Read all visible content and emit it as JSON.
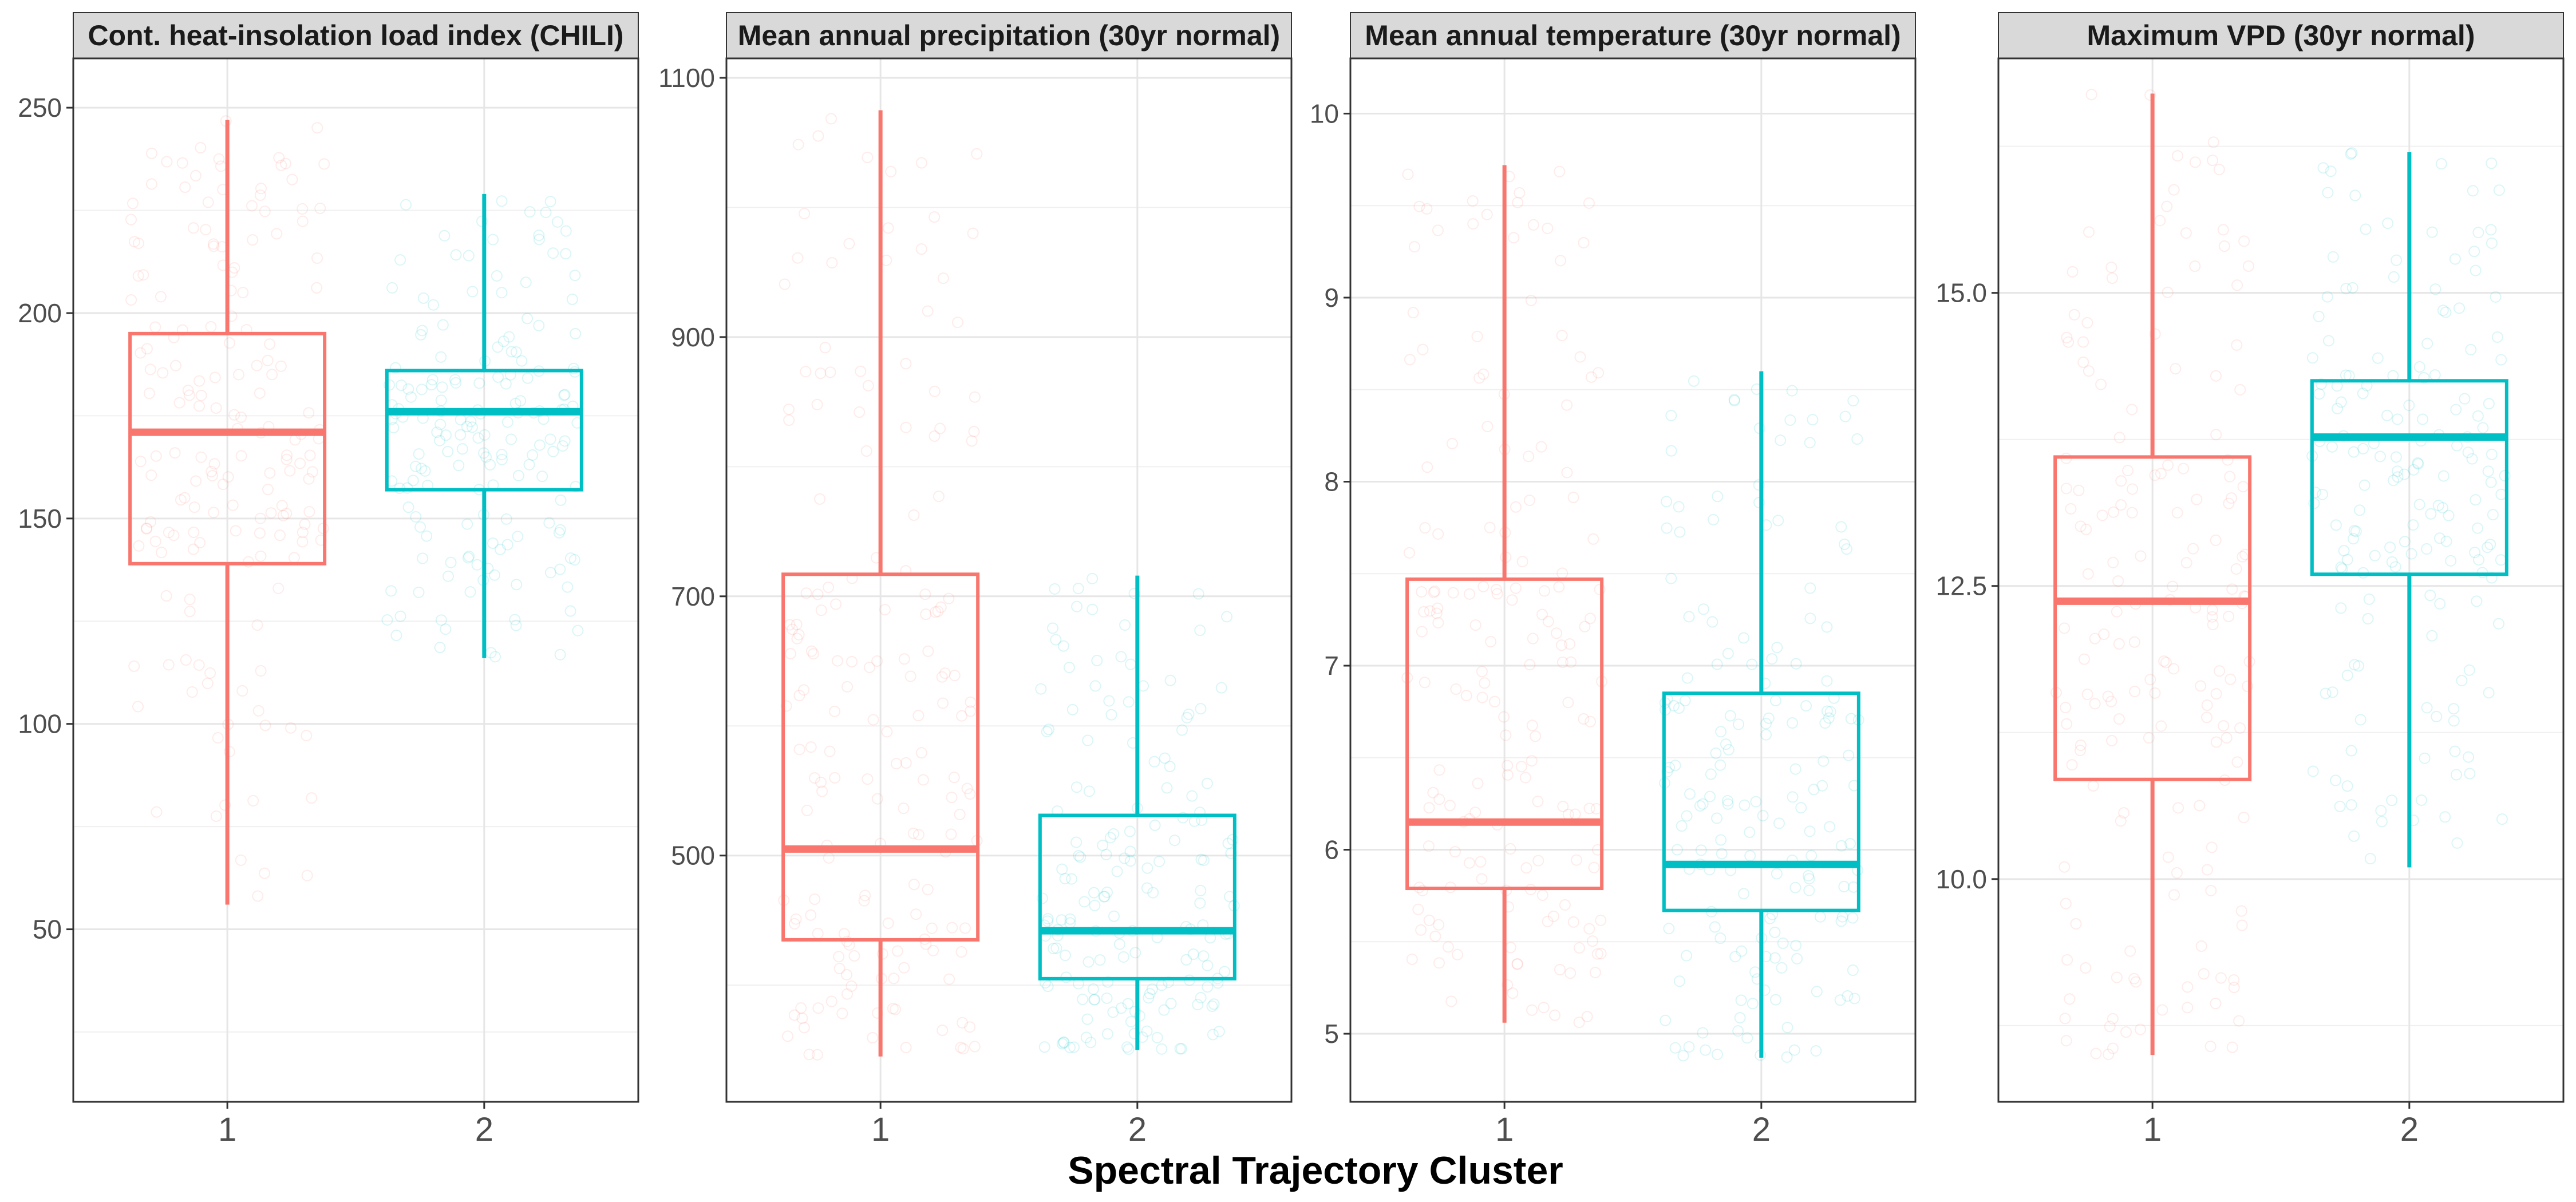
{
  "chart_data": {
    "type": "boxplot",
    "xlabel": "Spectral Trajectory Cluster",
    "categories": [
      "1",
      "2"
    ],
    "colors": {
      "1": "#F8766D",
      "2": "#00BFC4"
    },
    "facets": [
      {
        "title": "Cont. heat-insolation load index (CHILI)",
        "ylim": [
          8,
          262
        ],
        "yticks": [
          50,
          100,
          150,
          200,
          250
        ],
        "ytick_labels": [
          "50",
          "100",
          "150",
          "200",
          "250"
        ],
        "boxes": [
          {
            "category": "1",
            "whisker_low": 56,
            "q1": 139,
            "median": 171,
            "q3": 195,
            "whisker_high": 247
          },
          {
            "category": "2",
            "whisker_low": 116,
            "q1": 157,
            "median": 176,
            "q3": 186,
            "whisker_high": 229
          }
        ]
      },
      {
        "title": "Mean annual precipitation (30yr normal)",
        "ylim": [
          310,
          1115
        ],
        "yticks": [
          500,
          700,
          900,
          1100
        ],
        "ytick_labels": [
          "500",
          "700",
          "900",
          "1100"
        ],
        "boxes": [
          {
            "category": "1",
            "whisker_low": 345,
            "q1": 435,
            "median": 505,
            "q3": 717,
            "whisker_high": 1075
          },
          {
            "category": "2",
            "whisker_low": 350,
            "q1": 405,
            "median": 442,
            "q3": 531,
            "whisker_high": 716
          }
        ]
      },
      {
        "title": "Mean annual temperature (30yr normal)",
        "ylim": [
          4.63,
          10.3
        ],
        "yticks": [
          5,
          6,
          7,
          8,
          9,
          10
        ],
        "ytick_labels": [
          "5",
          "6",
          "7",
          "8",
          "9",
          "10"
        ],
        "boxes": [
          {
            "category": "1",
            "whisker_low": 5.06,
            "q1": 5.79,
            "median": 6.15,
            "q3": 7.47,
            "whisker_high": 9.72
          },
          {
            "category": "2",
            "whisker_low": 4.87,
            "q1": 5.67,
            "median": 5.92,
            "q3": 6.85,
            "whisker_high": 8.6
          }
        ]
      },
      {
        "title": "Maximum VPD (30yr normal)",
        "ylim": [
          8.1,
          17.0
        ],
        "yticks": [
          10.0,
          12.5,
          15.0
        ],
        "ytick_labels": [
          "10.0",
          "12.5",
          "15.0"
        ],
        "boxes": [
          {
            "category": "1",
            "whisker_low": 8.5,
            "q1": 10.85,
            "median": 12.37,
            "q3": 13.6,
            "whisker_high": 16.7
          },
          {
            "category": "2",
            "whisker_low": 10.1,
            "q1": 12.6,
            "median": 13.77,
            "q3": 14.25,
            "whisker_high": 16.2
          }
        ]
      }
    ]
  }
}
